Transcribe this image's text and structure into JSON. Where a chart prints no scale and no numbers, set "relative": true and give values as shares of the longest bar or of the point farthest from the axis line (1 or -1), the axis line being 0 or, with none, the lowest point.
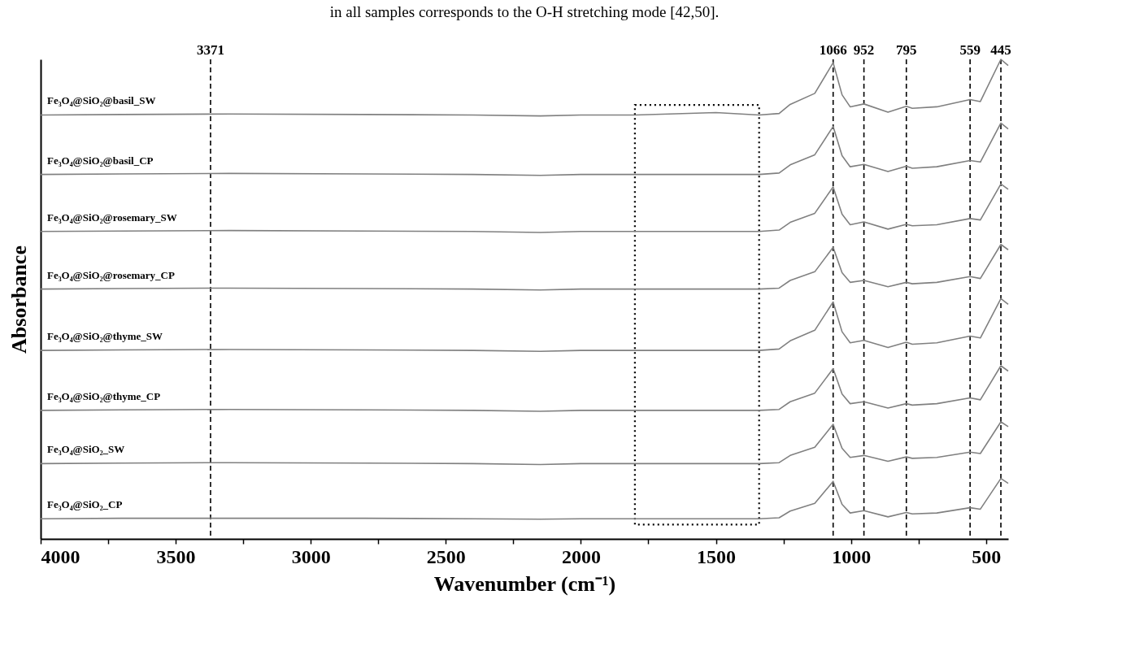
{
  "chart_data": {
    "type": "line",
    "relative": true,
    "title": "in all samples corresponds to the O-H stretching mode [42,50].",
    "xlabel": "Wavenumber (cm⁻¹)",
    "ylabel": "Absorbance",
    "x": [
      4000,
      3700,
      3300,
      2800,
      2400,
      2150,
      2000,
      1800,
      1500,
      1340,
      1266,
      1225,
      1134,
      1066,
      1033,
      1003,
      952,
      863,
      795,
      773,
      682,
      559,
      521,
      445,
      418
    ],
    "xlim": [
      4000,
      418
    ],
    "xticks": [
      4000,
      {
        "value": 3750,
        "label": null
      },
      3500,
      {
        "value": 3250,
        "label": null
      },
      3000,
      {
        "value": 2750,
        "label": null
      },
      2500,
      {
        "value": 2250,
        "label": null
      },
      2000,
      {
        "value": 1750,
        "label": null
      },
      1500,
      {
        "value": 1250,
        "label": null
      },
      1000,
      {
        "value": 750,
        "label": null
      },
      500
    ],
    "series": [
      {
        "name": "Fe₃O₄@SiO₂@basil_SW",
        "color": "#808080",
        "values": [
          0.884,
          0.885,
          0.886,
          0.885,
          0.884,
          0.882,
          0.884,
          0.884,
          0.889,
          0.884,
          0.887,
          0.906,
          0.929,
          0.993,
          0.926,
          0.901,
          0.907,
          0.89,
          0.902,
          0.898,
          0.901,
          0.916,
          0.912,
          1.0,
          0.987
        ]
      },
      {
        "name": "Fe₃O₄@SiO₂@basil_CP",
        "color": "#808080",
        "values": [
          0.76,
          0.761,
          0.762,
          0.761,
          0.76,
          0.758,
          0.76,
          0.76,
          0.76,
          0.76,
          0.763,
          0.78,
          0.801,
          0.86,
          0.799,
          0.776,
          0.781,
          0.766,
          0.777,
          0.773,
          0.776,
          0.789,
          0.786,
          0.867,
          0.855
        ]
      },
      {
        "name": "Fe₃O₄@SiO₂@rosemary_SW",
        "color": "#808080",
        "values": [
          0.641,
          0.642,
          0.643,
          0.642,
          0.641,
          0.639,
          0.641,
          0.641,
          0.641,
          0.641,
          0.644,
          0.66,
          0.679,
          0.734,
          0.677,
          0.655,
          0.661,
          0.646,
          0.656,
          0.653,
          0.655,
          0.668,
          0.665,
          0.74,
          0.729
        ]
      },
      {
        "name": "Fe₃O₄@SiO₂@rosemary_CP",
        "color": "#808080",
        "values": [
          0.521,
          0.522,
          0.523,
          0.522,
          0.521,
          0.519,
          0.521,
          0.521,
          0.521,
          0.521,
          0.523,
          0.539,
          0.557,
          0.608,
          0.555,
          0.535,
          0.539,
          0.526,
          0.535,
          0.532,
          0.535,
          0.547,
          0.543,
          0.614,
          0.603
        ]
      },
      {
        "name": "Fe₃O₄@SiO₂@thyme_SW",
        "color": "#808080",
        "values": [
          0.393,
          0.394,
          0.395,
          0.394,
          0.393,
          0.391,
          0.393,
          0.393,
          0.393,
          0.393,
          0.396,
          0.413,
          0.435,
          0.494,
          0.432,
          0.409,
          0.414,
          0.399,
          0.41,
          0.406,
          0.409,
          0.423,
          0.419,
          0.501,
          0.489
        ]
      },
      {
        "name": "Fe₃O₄@SiO₂@thyme_CP",
        "color": "#808080",
        "values": [
          0.268,
          0.269,
          0.27,
          0.269,
          0.268,
          0.266,
          0.268,
          0.268,
          0.268,
          0.268,
          0.27,
          0.286,
          0.304,
          0.355,
          0.302,
          0.282,
          0.286,
          0.273,
          0.282,
          0.279,
          0.282,
          0.294,
          0.29,
          0.361,
          0.35
        ]
      },
      {
        "name": "Fe₃O₄@SiO₂_SW",
        "color": "#808080",
        "values": [
          0.157,
          0.158,
          0.159,
          0.158,
          0.157,
          0.155,
          0.157,
          0.157,
          0.157,
          0.157,
          0.159,
          0.174,
          0.191,
          0.239,
          0.189,
          0.17,
          0.174,
          0.162,
          0.171,
          0.168,
          0.17,
          0.181,
          0.178,
          0.244,
          0.234
        ]
      },
      {
        "name": "Fe₃O₄@SiO₂_CP",
        "color": "#808080",
        "values": [
          0.042,
          0.043,
          0.043,
          0.043,
          0.042,
          0.041,
          0.042,
          0.042,
          0.042,
          0.042,
          0.044,
          0.058,
          0.074,
          0.12,
          0.072,
          0.054,
          0.059,
          0.046,
          0.055,
          0.052,
          0.054,
          0.065,
          0.062,
          0.126,
          0.116
        ]
      }
    ],
    "ref_lines": [
      {
        "axis": "x",
        "value": 3371,
        "label": "3371",
        "color": "#000000",
        "line_style": "dashed"
      },
      {
        "axis": "x",
        "value": 1066,
        "label": "1066",
        "color": "#000000",
        "line_style": "dashed"
      },
      {
        "axis": "x",
        "value": 952,
        "label": "952",
        "color": "#000000",
        "line_style": "dashed"
      },
      {
        "axis": "x",
        "value": 795,
        "label": "795",
        "color": "#000000",
        "line_style": "dashed"
      },
      {
        "axis": "x",
        "value": 559,
        "label": "559",
        "color": "#000000",
        "line_style": "dashed"
      },
      {
        "axis": "x",
        "value": 445,
        "label": "445",
        "color": "#000000",
        "line_style": "dashed"
      }
    ]
  }
}
